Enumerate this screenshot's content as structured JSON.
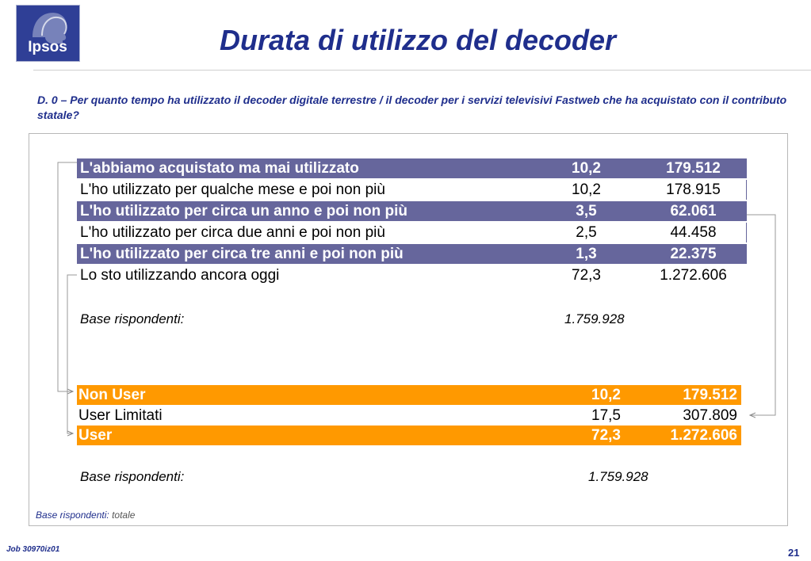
{
  "logo": {
    "text": "Ipsos"
  },
  "title": "Durata di utilizzo del decoder",
  "question": "D. 0 – Per quanto tempo ha utilizzato il decoder digitale terrestre / il  decoder  per i servizi televisivi Fastweb che ha acquistato con il contributo statale?",
  "table_detail": {
    "rows": [
      {
        "label": "L'abbiamo acquistato ma mai utilizzato",
        "pct": "10,2",
        "count": "179.512",
        "highlight": true
      },
      {
        "label": "L'ho utilizzato per qualche mese e poi non più",
        "pct": "10,2",
        "count": "178.915",
        "highlight": false
      },
      {
        "label": "L'ho utilizzato per circa un anno e poi non più",
        "pct": "3,5",
        "count": "62.061",
        "highlight": true
      },
      {
        "label": "L'ho utilizzato per circa due anni e poi non più",
        "pct": "2,5",
        "count": "44.458",
        "highlight": false
      },
      {
        "label": "L'ho utilizzato per circa tre anni e poi non più",
        "pct": "1,3",
        "count": "22.375",
        "highlight": true
      },
      {
        "label": "Lo sto utilizzando ancora oggi",
        "pct": "72,3",
        "count": "1.272.606",
        "highlight": false
      }
    ],
    "base_label": "Base rispondenti:",
    "base_value": "1.759.928"
  },
  "table_summary": {
    "rows": [
      {
        "label": "Non User",
        "pct": "10,2",
        "count": "179.512",
        "highlight": true
      },
      {
        "label": "User Limitati",
        "pct": "17,5",
        "count": "307.809",
        "highlight": false
      },
      {
        "label": "User",
        "pct": "72,3",
        "count": "1.272.606",
        "highlight": true
      }
    ],
    "base_label": "Base rispondenti:",
    "base_value": "1.759.928"
  },
  "footnote": {
    "label": "Base rispondenti:",
    "value": "totale"
  },
  "job": "Job 30970iz01",
  "page_number": "21",
  "colors": {
    "navy": "#1f2e8c",
    "purple_row": "#66669c",
    "orange_row": "#ff9900"
  }
}
